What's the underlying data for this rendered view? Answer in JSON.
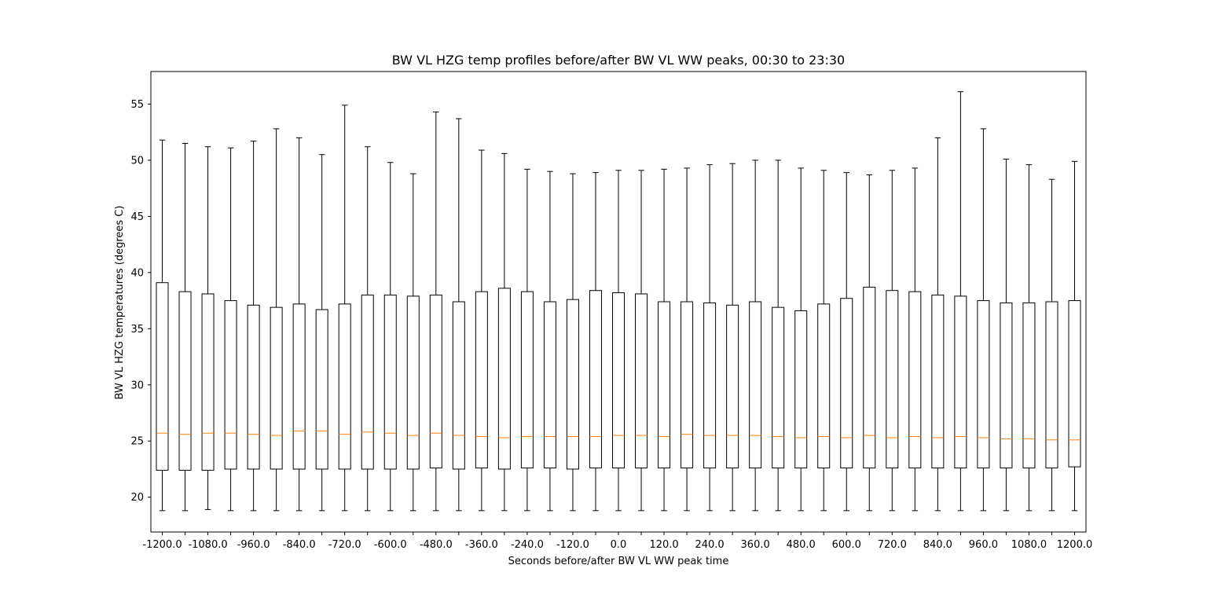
{
  "chart_data": {
    "type": "box",
    "title": "BW VL HZG temp profiles before/after BW VL WW peaks, 00:30 to 23:30",
    "xlabel": "Seconds before/after BW VL WW peak time",
    "ylabel": "BW VL HZG temperatures (degrees C)",
    "ylim": [
      16.9,
      57.9
    ],
    "yticks": [
      20,
      25,
      30,
      35,
      40,
      45,
      50,
      55
    ],
    "xtick_labels": [
      "-1200.0",
      "-1080.0",
      "-960.0",
      "-840.0",
      "-720.0",
      "-600.0",
      "-480.0",
      "-360.0",
      "-240.0",
      "-120.0",
      "0.0",
      "120.0",
      "240.0",
      "360.0",
      "480.0",
      "600.0",
      "720.0",
      "840.0",
      "960.0",
      "1080.0",
      "1200.0"
    ],
    "grid": false,
    "colors": {
      "box": "#000000",
      "median": "#ff7f0e",
      "background": "#ffffff"
    },
    "categories": [
      -1200,
      -1140,
      -1080,
      -1020,
      -960,
      -900,
      -840,
      -780,
      -720,
      -660,
      -600,
      -540,
      -480,
      -420,
      -360,
      -300,
      -240,
      -180,
      -120,
      -60,
      0,
      60,
      120,
      180,
      240,
      300,
      360,
      420,
      480,
      540,
      600,
      660,
      720,
      780,
      840,
      900,
      960,
      1020,
      1080,
      1140,
      1200
    ],
    "whisker_low": [
      18.8,
      18.8,
      18.9,
      18.8,
      18.8,
      18.8,
      18.8,
      18.8,
      18.8,
      18.8,
      18.8,
      18.8,
      18.8,
      18.8,
      18.8,
      18.8,
      18.8,
      18.8,
      18.8,
      18.8,
      18.8,
      18.8,
      18.8,
      18.8,
      18.8,
      18.8,
      18.8,
      18.8,
      18.8,
      18.8,
      18.8,
      18.8,
      18.8,
      18.8,
      18.8,
      18.8,
      18.8,
      18.8,
      18.8,
      18.8,
      18.8
    ],
    "q1": [
      22.4,
      22.4,
      22.4,
      22.5,
      22.5,
      22.5,
      22.5,
      22.5,
      22.5,
      22.5,
      22.5,
      22.5,
      22.6,
      22.5,
      22.6,
      22.5,
      22.6,
      22.6,
      22.5,
      22.6,
      22.6,
      22.6,
      22.6,
      22.6,
      22.6,
      22.6,
      22.6,
      22.6,
      22.6,
      22.6,
      22.6,
      22.6,
      22.6,
      22.6,
      22.6,
      22.6,
      22.6,
      22.6,
      22.6,
      22.6,
      22.7
    ],
    "median": [
      25.7,
      25.6,
      25.7,
      25.7,
      25.6,
      25.5,
      25.9,
      25.9,
      25.6,
      25.8,
      25.7,
      25.5,
      25.7,
      25.5,
      25.4,
      25.3,
      25.4,
      25.4,
      25.4,
      25.4,
      25.5,
      25.5,
      25.4,
      25.6,
      25.5,
      25.5,
      25.5,
      25.4,
      25.3,
      25.4,
      25.3,
      25.5,
      25.3,
      25.4,
      25.3,
      25.4,
      25.3,
      25.2,
      25.2,
      25.1,
      25.1
    ],
    "q3": [
      39.1,
      38.3,
      38.1,
      37.5,
      37.1,
      36.9,
      37.2,
      36.7,
      37.2,
      38.0,
      38.0,
      37.9,
      38.0,
      37.4,
      38.3,
      38.6,
      38.3,
      37.4,
      37.6,
      38.4,
      38.2,
      38.1,
      37.4,
      37.4,
      37.3,
      37.1,
      37.4,
      36.9,
      36.6,
      37.2,
      37.7,
      38.7,
      38.4,
      38.3,
      38.0,
      37.9,
      37.5,
      37.3,
      37.3,
      37.4,
      37.5
    ],
    "whisker_high": [
      51.8,
      51.5,
      51.2,
      51.1,
      51.7,
      52.8,
      52.0,
      50.5,
      54.9,
      51.2,
      49.8,
      48.8,
      54.3,
      53.7,
      50.9,
      50.6,
      49.2,
      49.0,
      48.8,
      48.9,
      49.1,
      49.1,
      49.2,
      49.3,
      49.6,
      49.7,
      50.0,
      50.0,
      49.3,
      49.1,
      48.9,
      48.7,
      49.1,
      49.3,
      52.0,
      56.1,
      52.8,
      50.1,
      49.6,
      48.3,
      49.9
    ]
  }
}
